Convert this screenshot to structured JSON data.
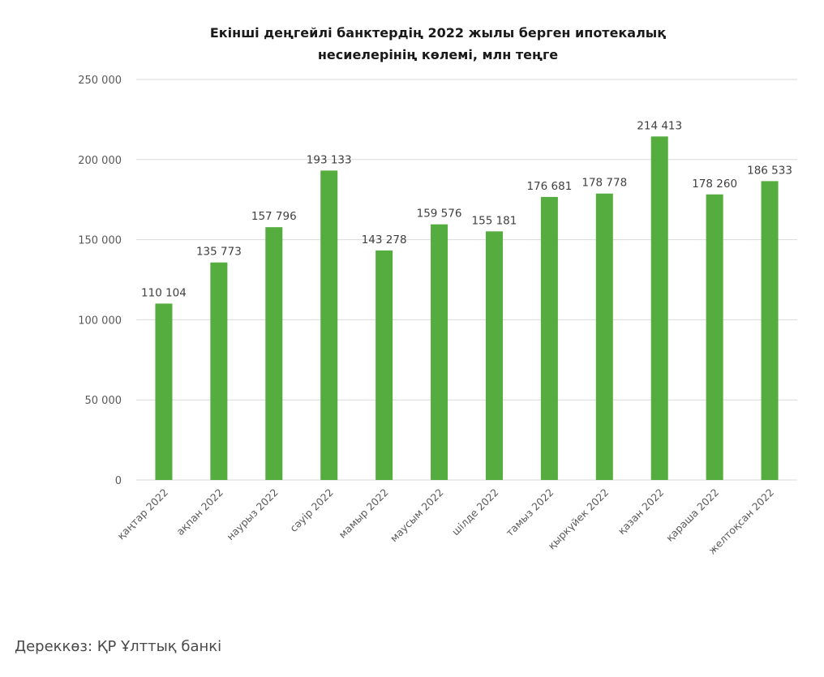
{
  "chart_data": {
    "type": "bar",
    "title_lines": [
      "Екінші деңгейлі банктердің 2022 жылы берген ипотекалық",
      "несиелерінің көлемі, млн теңге"
    ],
    "categories": [
      "қаңтар 2022",
      "ақпан 2022",
      "наурыз 2022",
      "сәуір 2022",
      "мамыр 2022",
      "маусым 2022",
      "шілде 2022",
      "тамыз 2022",
      "қыркүйек 2022",
      "қазан 2022",
      "қараша 2022",
      "желтоқсан 2022"
    ],
    "values": [
      110104,
      135773,
      157796,
      193133,
      143278,
      159576,
      155181,
      176681,
      178778,
      214413,
      178260,
      186533
    ],
    "value_labels": [
      "110 104",
      "135 773",
      "157 796",
      "193 133",
      "143 278",
      "159 576",
      "155 181",
      "176 681",
      "178 778",
      "214 413",
      "178 260",
      "186 533"
    ],
    "ylim": [
      0,
      250000
    ],
    "yticks": [
      0,
      50000,
      100000,
      150000,
      200000,
      250000
    ],
    "ytick_labels": [
      "0",
      "50 000",
      "100 000",
      "150 000",
      "200 000",
      "250 000"
    ],
    "grid": true,
    "legend": "none",
    "bar_color": "#54ad3e"
  },
  "source": "Дереккөз: ҚР Ұлттық банкі"
}
